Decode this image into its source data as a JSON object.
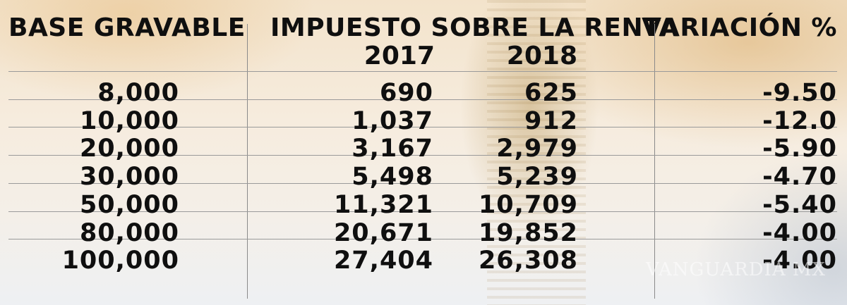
{
  "chart_data": {
    "type": "table",
    "headers": {
      "base": "BASE GRAVABLE",
      "tax": "IMPUESTO SOBRE LA RENTA",
      "variation": "VARIACIÓN %",
      "year_2017": "2017",
      "year_2018": "2018"
    },
    "rows": [
      {
        "base": "8,000",
        "y2017": "690",
        "y2018": "625",
        "variation": "-9.50"
      },
      {
        "base": "10,000",
        "y2017": "1,037",
        "y2018": "912",
        "variation": "-12.0"
      },
      {
        "base": "20,000",
        "y2017": "3,167",
        "y2018": "2,979",
        "variation": "-5.90"
      },
      {
        "base": "30,000",
        "y2017": "5,498",
        "y2018": "5,239",
        "variation": "-4.70"
      },
      {
        "base": "50,000",
        "y2017": "11,321",
        "y2018": "10,709",
        "variation": "-5.40"
      },
      {
        "base": "80,000",
        "y2017": "20,671",
        "y2018": "19,852",
        "variation": "-4.00"
      },
      {
        "base": "100,000",
        "y2017": "27,404",
        "y2018": "26,308",
        "variation": "-4.00"
      }
    ]
  },
  "watermark": "VANGUARDIA MX"
}
